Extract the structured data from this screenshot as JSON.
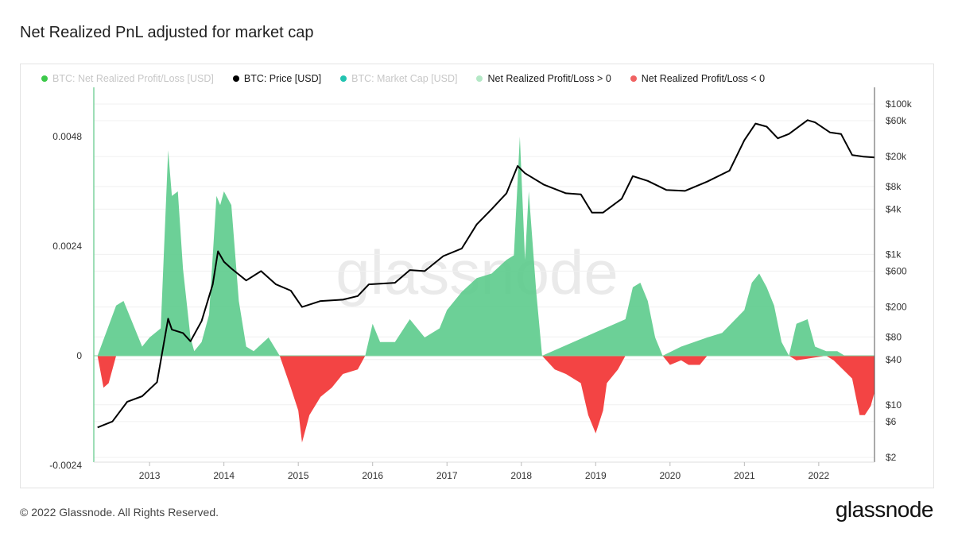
{
  "header": {
    "title": "Net Realized PnL adjusted for market cap"
  },
  "legend": [
    {
      "label": "BTC: Net Realized Profit/Loss [USD]",
      "color": "#3cc94a",
      "muted": true,
      "name": "legend-net-realized-pnl"
    },
    {
      "label": "BTC: Price [USD]",
      "color": "#000000",
      "muted": false,
      "name": "legend-btc-price"
    },
    {
      "label": "BTC: Market Cap [USD]",
      "color": "#22c3b0",
      "muted": true,
      "name": "legend-market-cap"
    },
    {
      "label": "Net Realized Profit/Loss > 0",
      "color": "#b4e8c6",
      "muted": false,
      "name": "legend-profit"
    },
    {
      "label": "Net Realized Profit/Loss < 0",
      "color": "#f06262",
      "muted": false,
      "name": "legend-loss"
    }
  ],
  "watermark": "glassnode",
  "footer": {
    "copyright": "© 2022 Glassnode. All Rights Reserved.",
    "brand": "glassnode"
  },
  "colors": {
    "profit": "#5ccb8c",
    "loss": "#f23a3a",
    "price": "#000000"
  },
  "chart_data": {
    "type": "area",
    "x_ticks": [
      "2013",
      "2014",
      "2015",
      "2016",
      "2017",
      "2018",
      "2019",
      "2020",
      "2021",
      "2022"
    ],
    "y_left": {
      "ticks": [
        0.0048,
        0.0024,
        0,
        -0.0024
      ],
      "tick_labels": [
        "0.0048",
        "0.0024",
        "0",
        "-0.0024"
      ],
      "range": [
        -0.0024,
        0.0048
      ]
    },
    "y_right": {
      "scale": "log",
      "ticks": [
        100000,
        60000,
        20000,
        8000,
        4000,
        1000,
        600,
        200,
        80,
        40,
        10,
        6,
        2
      ],
      "tick_labels": [
        "$100k",
        "$60k",
        "$20k",
        "$8k",
        "$4k",
        "$1k",
        "$600",
        "$200",
        "$80",
        "$40",
        "$10",
        "$6",
        "$2"
      ]
    },
    "series": [
      {
        "name": "Net Realized Profit/Loss > 0",
        "x": [
          2012.3,
          2012.55,
          2012.65,
          2012.75,
          2012.9,
          2013.0,
          2013.15,
          2013.25,
          2013.3,
          2013.38,
          2013.45,
          2013.55,
          2013.6,
          2013.7,
          2013.8,
          2013.9,
          2013.95,
          2014.0,
          2014.1,
          2014.2,
          2014.3,
          2014.4,
          2014.6,
          2014.75,
          2015.9,
          2016.0,
          2016.1,
          2016.3,
          2016.5,
          2016.7,
          2016.9,
          2017.0,
          2017.2,
          2017.4,
          2017.6,
          2017.8,
          2017.9,
          2017.98,
          2018.05,
          2018.1,
          2018.2,
          2018.28,
          2019.4,
          2019.5,
          2019.6,
          2019.7,
          2019.8,
          2019.9,
          2020.15,
          2020.5,
          2020.7,
          2021.0,
          2021.1,
          2021.2,
          2021.3,
          2021.4,
          2021.5,
          2021.6,
          2021.7,
          2021.85,
          2021.95,
          2022.1,
          2022.25,
          2022.35
        ],
        "values": [
          0,
          0.0011,
          0.0012,
          0.0008,
          0.0002,
          0.0004,
          0.0006,
          0.0045,
          0.0035,
          0.0036,
          0.0019,
          0.0004,
          0.0001,
          0.0003,
          0.0009,
          0.0035,
          0.0033,
          0.0036,
          0.0033,
          0.0012,
          0.0002,
          0.0001,
          0.0004,
          0,
          0,
          0.0007,
          0.0003,
          0.0003,
          0.0008,
          0.0004,
          0.0006,
          0.001,
          0.0014,
          0.0017,
          0.0018,
          0.0021,
          0.0022,
          0.0048,
          0.0021,
          0.0036,
          0.0014,
          0,
          0.0008,
          0.0015,
          0.0016,
          0.0012,
          0.0004,
          0,
          0.0002,
          0.0004,
          0.0005,
          0.001,
          0.0016,
          0.0018,
          0.0015,
          0.0011,
          0.0003,
          0,
          0.0007,
          0.0008,
          0.0002,
          0.0001,
          0.0001,
          0
        ]
      },
      {
        "name": "Net Realized Profit/Loss < 0",
        "x": [
          2012.3,
          2012.38,
          2012.45,
          2012.55,
          2014.75,
          2014.9,
          2015.0,
          2015.05,
          2015.15,
          2015.3,
          2015.45,
          2015.6,
          2015.8,
          2015.9,
          2018.28,
          2018.45,
          2018.6,
          2018.8,
          2018.9,
          2019.0,
          2019.1,
          2019.15,
          2019.3,
          2019.4,
          2019.9,
          2020.0,
          2020.15,
          2020.25,
          2020.4,
          2020.5,
          2021.6,
          2021.7,
          2022.1,
          2022.2,
          2022.45,
          2022.55,
          2022.62,
          2022.7,
          2022.75
        ],
        "values": [
          0,
          -0.0007,
          -0.0006,
          0,
          0,
          -0.0007,
          -0.0012,
          -0.0019,
          -0.0013,
          -0.0009,
          -0.0007,
          -0.0004,
          -0.0003,
          0,
          0,
          -0.0003,
          -0.0004,
          -0.0006,
          -0.0013,
          -0.0017,
          -0.0012,
          -0.0006,
          -0.0003,
          0,
          0,
          -0.0002,
          -0.0001,
          -0.0002,
          -0.0002,
          0,
          0,
          -0.0001,
          0,
          -0.0001,
          -0.0005,
          -0.0013,
          -0.0013,
          -0.0011,
          -0.0008
        ]
      },
      {
        "name": "BTC: Price [USD]",
        "axis": "right",
        "x": [
          2012.3,
          2012.5,
          2012.7,
          2012.9,
          2013.1,
          2013.25,
          2013.3,
          2013.45,
          2013.55,
          2013.7,
          2013.85,
          2013.92,
          2014.0,
          2014.1,
          2014.3,
          2014.5,
          2014.7,
          2014.9,
          2015.05,
          2015.3,
          2015.6,
          2015.8,
          2015.95,
          2016.3,
          2016.5,
          2016.7,
          2016.95,
          2017.2,
          2017.4,
          2017.6,
          2017.8,
          2017.95,
          2018.05,
          2018.3,
          2018.6,
          2018.8,
          2018.95,
          2019.1,
          2019.35,
          2019.5,
          2019.7,
          2019.95,
          2020.2,
          2020.5,
          2020.8,
          2021.0,
          2021.15,
          2021.3,
          2021.45,
          2021.6,
          2021.85,
          2021.95,
          2022.15,
          2022.3,
          2022.45,
          2022.6,
          2022.75
        ],
        "values": [
          5,
          6,
          11,
          13,
          20,
          140,
          100,
          90,
          70,
          130,
          400,
          1100,
          800,
          650,
          450,
          600,
          400,
          330,
          200,
          240,
          250,
          280,
          400,
          420,
          620,
          600,
          950,
          1200,
          2500,
          4000,
          6500,
          15000,
          12000,
          8500,
          6500,
          6300,
          3600,
          3600,
          5500,
          11000,
          9500,
          7200,
          7000,
          9300,
          13000,
          33000,
          55000,
          50000,
          35000,
          40000,
          61000,
          57000,
          42000,
          40000,
          21000,
          20000,
          19500
        ]
      }
    ]
  }
}
